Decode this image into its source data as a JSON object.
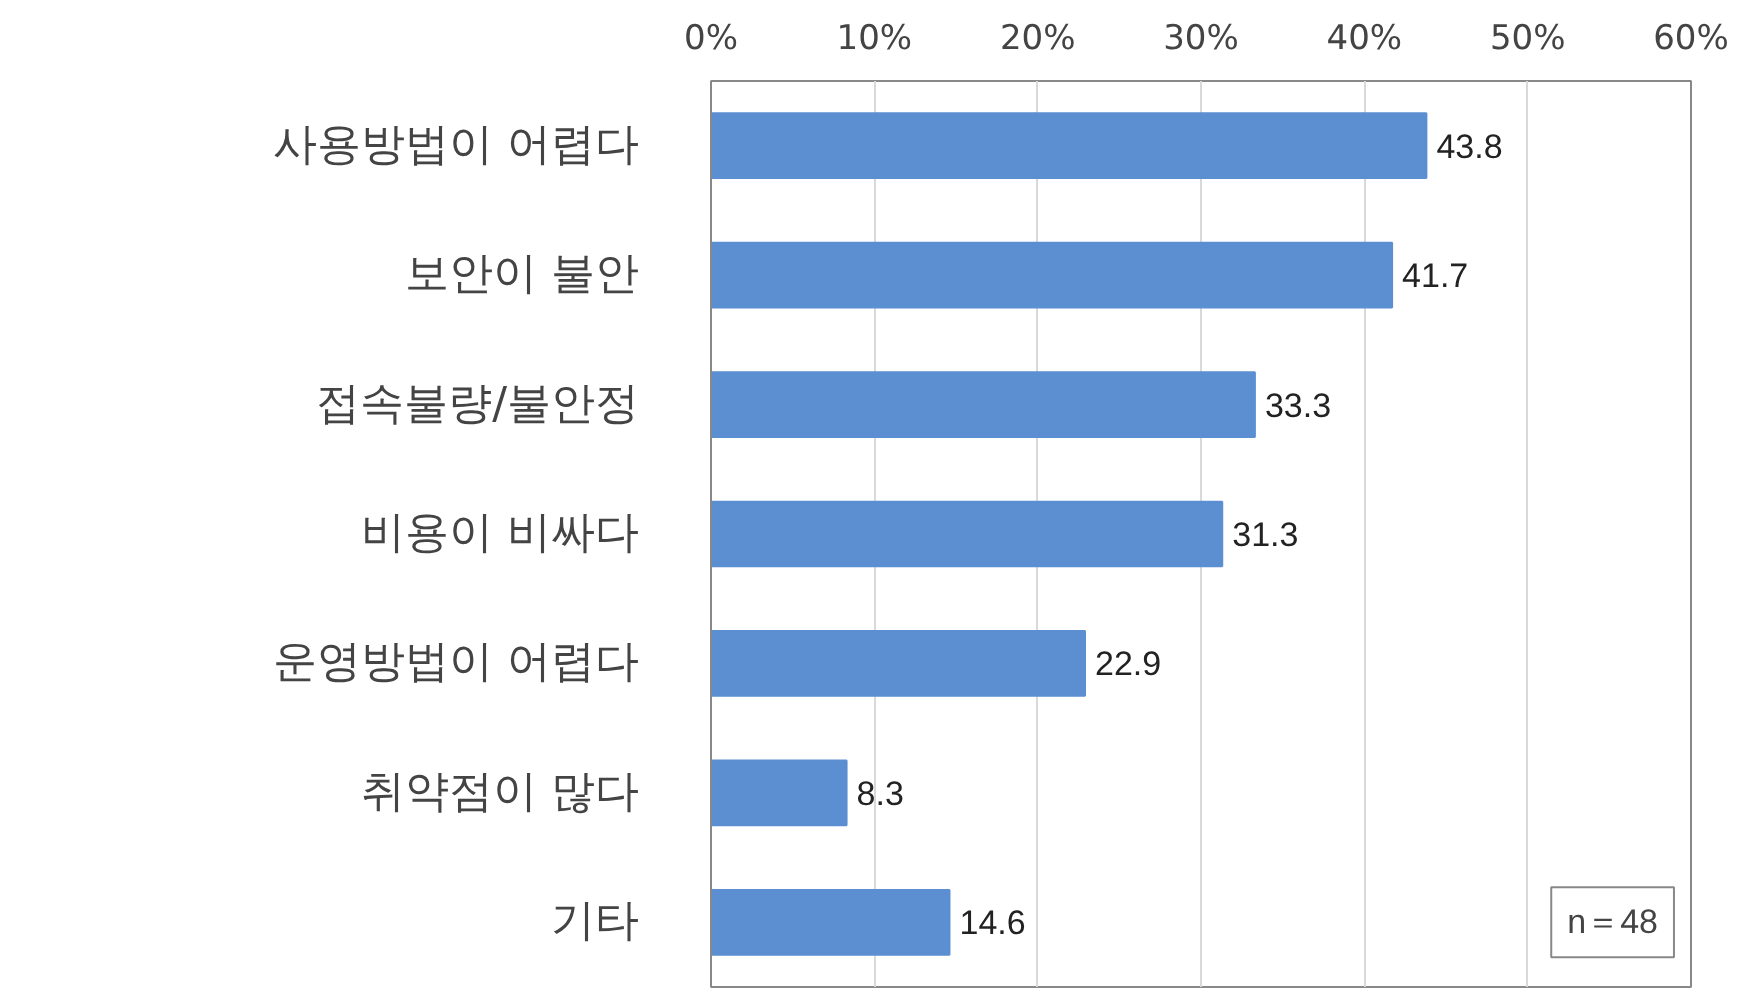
{
  "chart_data": {
    "type": "bar",
    "orientation": "horizontal",
    "categories": [
      "사용방법이 어렵다",
      "보안이 불안",
      "접속불량/불안정",
      "비용이 비싸다",
      "운영방법이 어렵다",
      "취약점이 많다",
      "기타"
    ],
    "values": [
      43.8,
      41.7,
      33.3,
      31.3,
      22.9,
      8.3,
      14.6
    ],
    "color": "#5b8fd1",
    "xlim": [
      0,
      60
    ],
    "xticks": [
      {
        "value": 0,
        "label": "0%"
      },
      {
        "value": 10,
        "label": "10%"
      },
      {
        "value": 20,
        "label": "20%"
      },
      {
        "value": 30,
        "label": "30%"
      },
      {
        "value": 40,
        "label": "40%"
      },
      {
        "value": 50,
        "label": "50%"
      },
      {
        "value": 60,
        "label": "60%"
      }
    ],
    "grid": "x",
    "data_labels": true,
    "annotations": [
      "n＝48"
    ]
  }
}
